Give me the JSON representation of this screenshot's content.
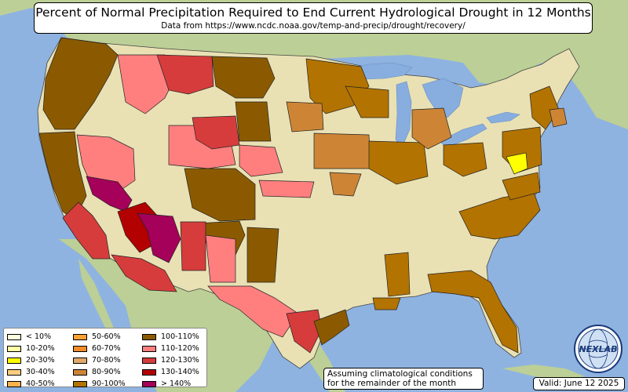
{
  "title": "Percent of Normal Precipitation Required to End Current Hydrological Drought in 12 Months",
  "subtitle": "Data from https://www.ncdc.noaa.gov/temp-and-precip/drought/recovery/",
  "note_line1": "Assuming climatological conditions",
  "note_line2": "for the remainder of the month",
  "valid": "Valid: June 12 2025",
  "logo": {
    "text": "NEXLAB",
    "icon": "nexlab-globe-logo"
  },
  "colors": {
    "ocean": "#8fb3e0",
    "land_us": "#e9e1b4",
    "land_other": "#bccf96",
    "lake": "#87aede"
  },
  "legend": [
    {
      "label": "< 10%",
      "color": "#ffffe0"
    },
    {
      "label": "10-20%",
      "color": "#ffffa8"
    },
    {
      "label": "20-30%",
      "color": "#ffff00"
    },
    {
      "label": "30-40%",
      "color": "#ffcc80"
    },
    {
      "label": "40-50%",
      "color": "#ffb24c"
    },
    {
      "label": "50-60%",
      "color": "#ffa033"
    },
    {
      "label": "60-70%",
      "color": "#f28c28"
    },
    {
      "label": "70-80%",
      "color": "#e0a86a"
    },
    {
      "label": "80-90%",
      "color": "#cd8535"
    },
    {
      "label": "90-100%",
      "color": "#b37300"
    },
    {
      "label": "100-110%",
      "color": "#8b5a00"
    },
    {
      "label": "110-120%",
      "color": "#ff7f7f"
    },
    {
      "label": "120-130%",
      "color": "#d63c3c"
    },
    {
      "label": "130-140%",
      "color": "#b30000"
    },
    {
      "label": "> 140%",
      "color": "#a5005a"
    }
  ]
}
